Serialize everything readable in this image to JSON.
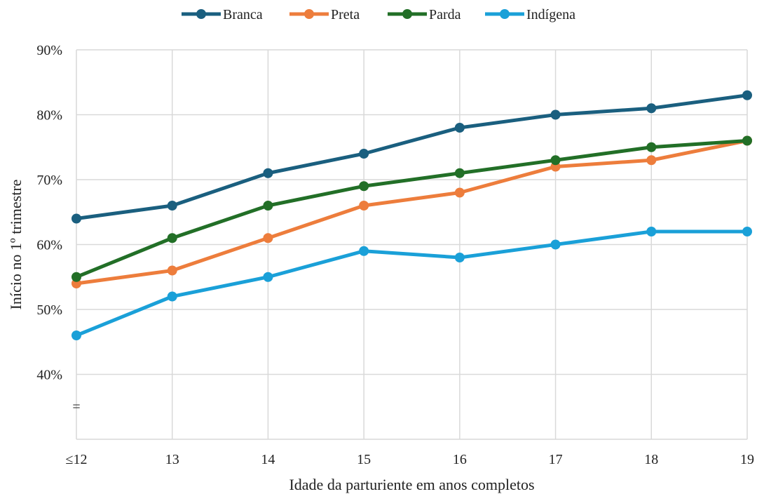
{
  "chart_data": {
    "type": "line",
    "title": "",
    "xlabel": "Idade da parturiente em anos completos",
    "ylabel": "Início no 1º trimestre",
    "categories": [
      "≤12",
      "13",
      "14",
      "15",
      "16",
      "17",
      "18",
      "19"
    ],
    "ylim": [
      30,
      90
    ],
    "yticks": [
      {
        "value": 90,
        "label": "90%"
      },
      {
        "value": 80,
        "label": "80%"
      },
      {
        "value": 70,
        "label": "70%"
      },
      {
        "value": 60,
        "label": "60%"
      },
      {
        "value": 50,
        "label": "50%"
      },
      {
        "value": 40,
        "label": "40%"
      }
    ],
    "axis_break_marker": "=",
    "grid": true,
    "legend_position": "top-center",
    "series": [
      {
        "name": "Branca",
        "color": "#1a5f7f",
        "values": [
          64,
          66,
          71,
          74,
          78,
          80,
          81,
          83
        ]
      },
      {
        "name": "Preta",
        "color": "#ed7d3c",
        "values": [
          54,
          56,
          61,
          66,
          68,
          72,
          73,
          76
        ]
      },
      {
        "name": "Parda",
        "color": "#226f27",
        "values": [
          55,
          61,
          66,
          69,
          71,
          73,
          75,
          76
        ]
      },
      {
        "name": "Indígena",
        "color": "#1aa0d8",
        "values": [
          46,
          52,
          55,
          59,
          58,
          60,
          62,
          62
        ]
      }
    ]
  }
}
